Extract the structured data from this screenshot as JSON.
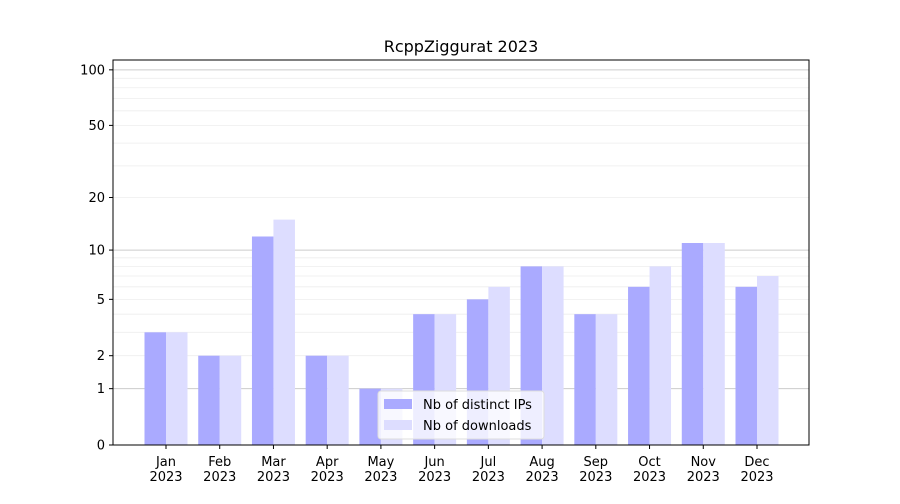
{
  "chart_data": {
    "type": "bar",
    "title": "RcppZiggurat 2023",
    "xlabel": "",
    "ylabel": "",
    "yscale": "symlog (log10(y+1))",
    "ylim": [
      0,
      113
    ],
    "yticks": [
      0,
      1,
      2,
      5,
      10,
      20,
      50,
      100
    ],
    "grid": true,
    "legend_position": "lower center",
    "categories": [
      "Jan\n2023",
      "Feb\n2023",
      "Mar\n2023",
      "Apr\n2023",
      "May\n2023",
      "Jun\n2023",
      "Jul\n2023",
      "Aug\n2023",
      "Sep\n2023",
      "Oct\n2023",
      "Nov\n2023",
      "Dec\n2023"
    ],
    "series": [
      {
        "name": "Nb of distinct IPs",
        "color": "#aaaaff",
        "values": [
          3,
          2,
          12,
          2,
          1,
          4,
          5,
          8,
          4,
          6,
          11,
          6
        ]
      },
      {
        "name": "Nb of downloads",
        "color": "#ddddff",
        "values": [
          3,
          2,
          15,
          2,
          1,
          4,
          6,
          8,
          4,
          8,
          11,
          7
        ]
      }
    ]
  }
}
